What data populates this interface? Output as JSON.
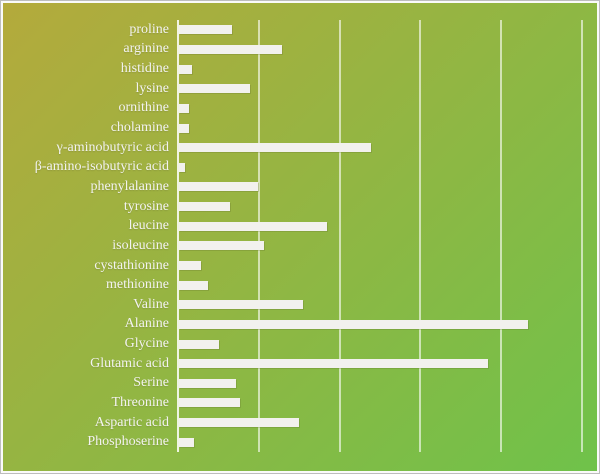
{
  "chart_data": {
    "type": "bar",
    "orientation": "horizontal",
    "title": "",
    "xlabel": "",
    "ylabel": "",
    "categories": [
      "proline",
      "arginine",
      "histidine",
      "lysine",
      "ornithine",
      "cholamine",
      "γ-aminobutyric acid",
      "β-amino-isobutyric acid",
      "phenylalanine",
      "tyrosine",
      "leucine",
      "isoleucine",
      "cystathionine",
      "methionine",
      "Valine",
      "Alanine",
      "Glycine",
      "Glutamic acid",
      "Serine",
      "Threonine",
      "Aspartic acid",
      "Phosphoserine"
    ],
    "values": [
      0.65,
      1.27,
      0.16,
      0.88,
      0.12,
      0.12,
      2.38,
      0.07,
      0.98,
      0.63,
      1.83,
      1.05,
      0.27,
      0.36,
      1.53,
      4.32,
      0.5,
      3.82,
      0.7,
      0.75,
      1.49,
      0.19
    ],
    "xlim": [
      0,
      5.2
    ],
    "gridlines_x": [
      1,
      2,
      3,
      4,
      5
    ],
    "grid_on": true,
    "axis_tick_labels_visible": false,
    "legend": "none",
    "bar_color": "#f2f1ee",
    "label_color": "#f3f3f0",
    "gridline_color": "rgba(255,255,255,0.6)",
    "axis_line_color": "rgba(255,255,255,0.85)",
    "background_gradient_start": "#b4aa3c",
    "background_gradient_end": "#6fc24a",
    "frame_border_color": "#bdbdbd"
  }
}
